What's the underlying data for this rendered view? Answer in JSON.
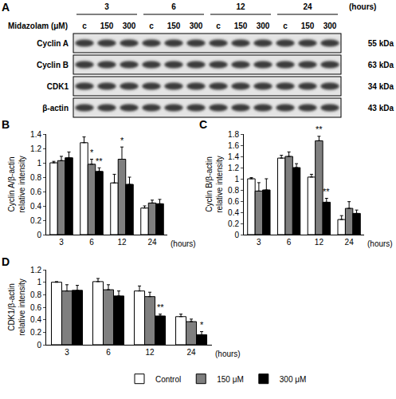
{
  "blot": {
    "panel": "A",
    "treatment_label": "Midazolam (μM)",
    "time_unit": "(hours)",
    "time_points": [
      "3",
      "6",
      "12",
      "24"
    ],
    "lanes": [
      "c",
      "150",
      "300"
    ],
    "rows": [
      {
        "name": "Cyclin A",
        "size": "55 kDa"
      },
      {
        "name": "Cyclin B",
        "size": "63 kDa"
      },
      {
        "name": "CDK1",
        "size": "34 kDa"
      },
      {
        "name": "β-actin",
        "size": "43 kDa"
      }
    ]
  },
  "chart_data": [
    {
      "panel": "B",
      "type": "bar",
      "y_label": [
        "Cyclin A/β-actin",
        "relative intensity"
      ],
      "x_label": "(hours)",
      "categories": [
        "3",
        "6",
        "12",
        "24"
      ],
      "series": [
        {
          "name": "Control",
          "color": "#ffffff",
          "values": [
            1.0,
            1.28,
            0.72,
            0.37
          ],
          "errors": [
            0.02,
            0.08,
            0.12,
            0.03
          ]
        },
        {
          "name": "150 μM",
          "color": "#7f7f7f",
          "values": [
            1.03,
            0.98,
            1.05,
            0.44
          ],
          "errors": [
            0.06,
            0.07,
            0.17,
            0.04
          ]
        },
        {
          "name": "300 μM",
          "color": "#000000",
          "values": [
            1.07,
            0.88,
            0.7,
            0.43
          ],
          "errors": [
            0.08,
            0.05,
            0.1,
            0.06
          ]
        }
      ],
      "annotations": [
        {
          "category": "6",
          "series": "150 μM",
          "text": "*"
        },
        {
          "category": "6",
          "series": "300 μM",
          "text": "**"
        },
        {
          "category": "12",
          "series": "150 μM",
          "text": "*"
        }
      ],
      "ylim": [
        0,
        1.4
      ],
      "yticks": [
        0,
        0.2,
        0.4,
        0.6,
        0.8,
        1,
        1.2,
        1.4
      ],
      "grid": false
    },
    {
      "panel": "C",
      "type": "bar",
      "y_label": [
        "Cyclin B/β-actin",
        "relative intensity"
      ],
      "x_label": "(hours)",
      "categories": [
        "3",
        "6",
        "12",
        "24"
      ],
      "series": [
        {
          "name": "Control",
          "color": "#ffffff",
          "values": [
            1.0,
            1.37,
            1.03,
            0.27
          ],
          "errors": [
            0.02,
            0.05,
            0.05,
            0.07
          ]
        },
        {
          "name": "150 μM",
          "color": "#7f7f7f",
          "values": [
            0.78,
            1.4,
            1.68,
            0.47
          ],
          "errors": [
            0.15,
            0.08,
            0.08,
            0.12
          ]
        },
        {
          "name": "300 μM",
          "color": "#000000",
          "values": [
            0.8,
            1.2,
            0.58,
            0.38
          ],
          "errors": [
            0.2,
            0.07,
            0.07,
            0.06
          ]
        }
      ],
      "annotations": [
        {
          "category": "12",
          "series": "150 μM",
          "text": "**"
        },
        {
          "category": "12",
          "series": "300 μM",
          "text": "**"
        }
      ],
      "ylim": [
        0,
        1.8
      ],
      "yticks": [
        0,
        0.2,
        0.4,
        0.6,
        0.8,
        1,
        1.2,
        1.4,
        1.6,
        1.8
      ],
      "grid": false
    },
    {
      "panel": "D",
      "type": "bar",
      "y_label": [
        "CDK1/β-actin",
        "relative intensity"
      ],
      "x_label": "(hours)",
      "categories": [
        "3",
        "6",
        "12",
        "24"
      ],
      "series": [
        {
          "name": "Control",
          "color": "#ffffff",
          "values": [
            1.0,
            1.01,
            0.86,
            0.45
          ],
          "errors": [
            0.01,
            0.05,
            0.08,
            0.04
          ]
        },
        {
          "name": "150 μM",
          "color": "#7f7f7f",
          "values": [
            0.86,
            0.88,
            0.77,
            0.37
          ],
          "errors": [
            0.1,
            0.08,
            0.07,
            0.04
          ]
        },
        {
          "name": "300 μM",
          "color": "#000000",
          "values": [
            0.87,
            0.78,
            0.46,
            0.16
          ],
          "errors": [
            0.08,
            0.08,
            0.03,
            0.05
          ]
        }
      ],
      "annotations": [
        {
          "category": "12",
          "series": "300 μM",
          "text": "**"
        },
        {
          "category": "24",
          "series": "300 μM",
          "text": "*"
        }
      ],
      "ylim": [
        0,
        1.2
      ],
      "yticks": [
        0,
        0.2,
        0.4,
        0.6,
        0.8,
        1,
        1.2
      ],
      "grid": false,
      "legend": "bottom"
    }
  ]
}
